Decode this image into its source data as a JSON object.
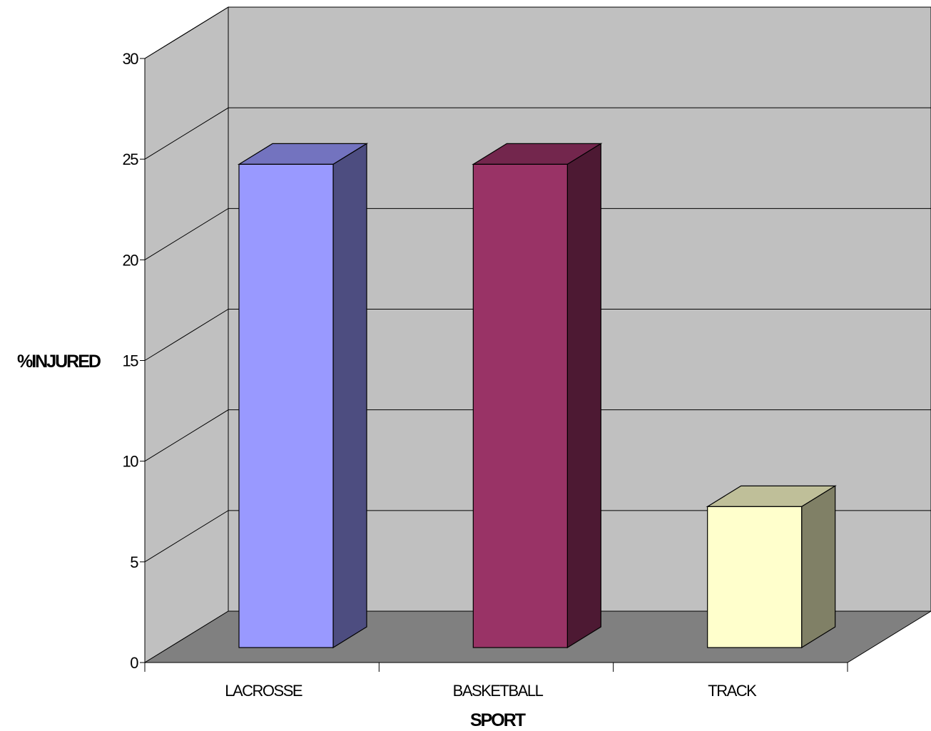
{
  "chart_data": {
    "type": "bar",
    "style": "3d-column",
    "categories": [
      "LACROSSE",
      "BASKETBALL",
      "TRACK"
    ],
    "values": [
      24,
      24,
      7
    ],
    "xlabel": "SPORT",
    "ylabel": "%INJURED",
    "ylim": [
      0,
      30
    ],
    "yticks": [
      0,
      5,
      10,
      15,
      20,
      25,
      30
    ],
    "grid": true,
    "legend": "none",
    "colors": {
      "bars": [
        {
          "front": "#9999ff",
          "top": "#7373bf",
          "side": "#4d4d80"
        },
        {
          "front": "#993366",
          "top": "#73264d",
          "side": "#4d1933"
        },
        {
          "front": "#ffffcc",
          "top": "#bfbf99",
          "side": "#808066"
        }
      ],
      "back_wall": "#c0c0c0",
      "side_wall": "#c0c0c0",
      "floor": "#808080",
      "gridline": "#000000"
    }
  }
}
